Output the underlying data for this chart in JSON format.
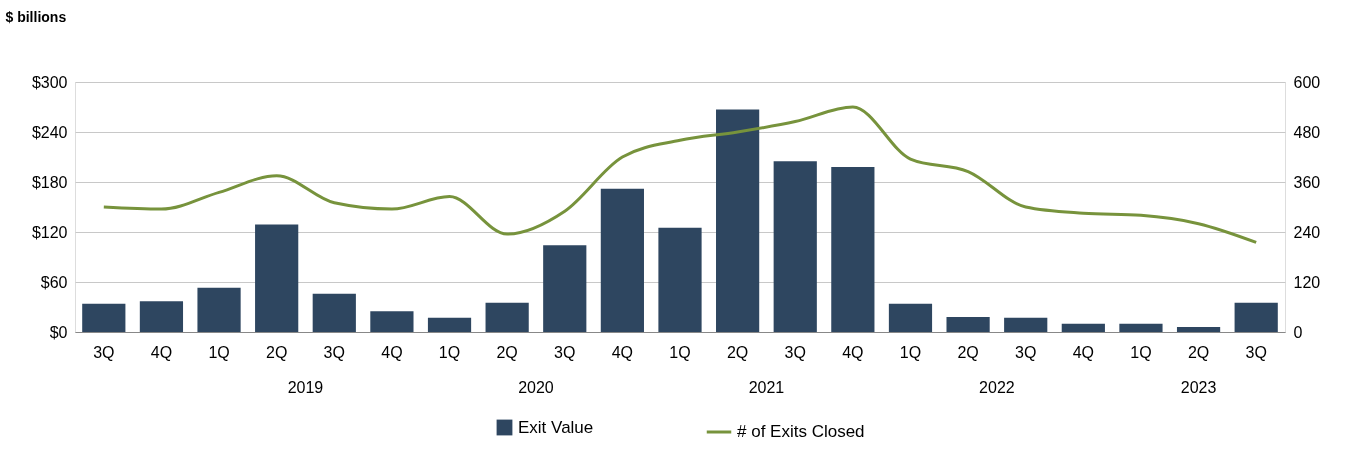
{
  "chart_data": {
    "type": "bar",
    "ylabel": "$ billions",
    "categories": [
      "3Q",
      "4Q",
      "1Q",
      "2Q",
      "3Q",
      "4Q",
      "1Q",
      "2Q",
      "3Q",
      "4Q",
      "1Q",
      "2Q",
      "3Q",
      "4Q",
      "1Q",
      "2Q",
      "3Q",
      "4Q",
      "1Q",
      "2Q",
      "3Q"
    ],
    "series": [
      {
        "name": "Exit Value",
        "type": "bar",
        "color": "#2e4660",
        "values": [
          34,
          37,
          53,
          129,
          46,
          25,
          17,
          35,
          104,
          172,
          125,
          267,
          205,
          198,
          34,
          18,
          17,
          10,
          10,
          6,
          35
        ]
      },
      {
        "name": "# of Exits Closed",
        "type": "line",
        "axis": "y2",
        "color": "#77933c",
        "values": [
          300,
          295,
          335,
          375,
          310,
          295,
          325,
          235,
          290,
          420,
          460,
          480,
          505,
          540,
          415,
          385,
          300,
          285,
          280,
          260,
          215
        ]
      }
    ],
    "ylim": [
      0,
      300
    ],
    "yticks": [
      {
        "value": 0,
        "label": "$0"
      },
      {
        "value": 60,
        "label": "$60"
      },
      {
        "value": 120,
        "label": "$120"
      },
      {
        "value": 180,
        "label": "$180"
      },
      {
        "value": 240,
        "label": "$240"
      },
      {
        "value": 300,
        "label": "$300"
      }
    ],
    "y2lim": [
      0,
      600
    ],
    "y2ticks": [
      0,
      120,
      240,
      360,
      480,
      600
    ],
    "grid": "y",
    "legend": "bottom",
    "line_style": "solid",
    "marker": "none",
    "annotations": [
      "2019",
      "2020",
      "2021",
      "2022",
      "2023"
    ]
  }
}
